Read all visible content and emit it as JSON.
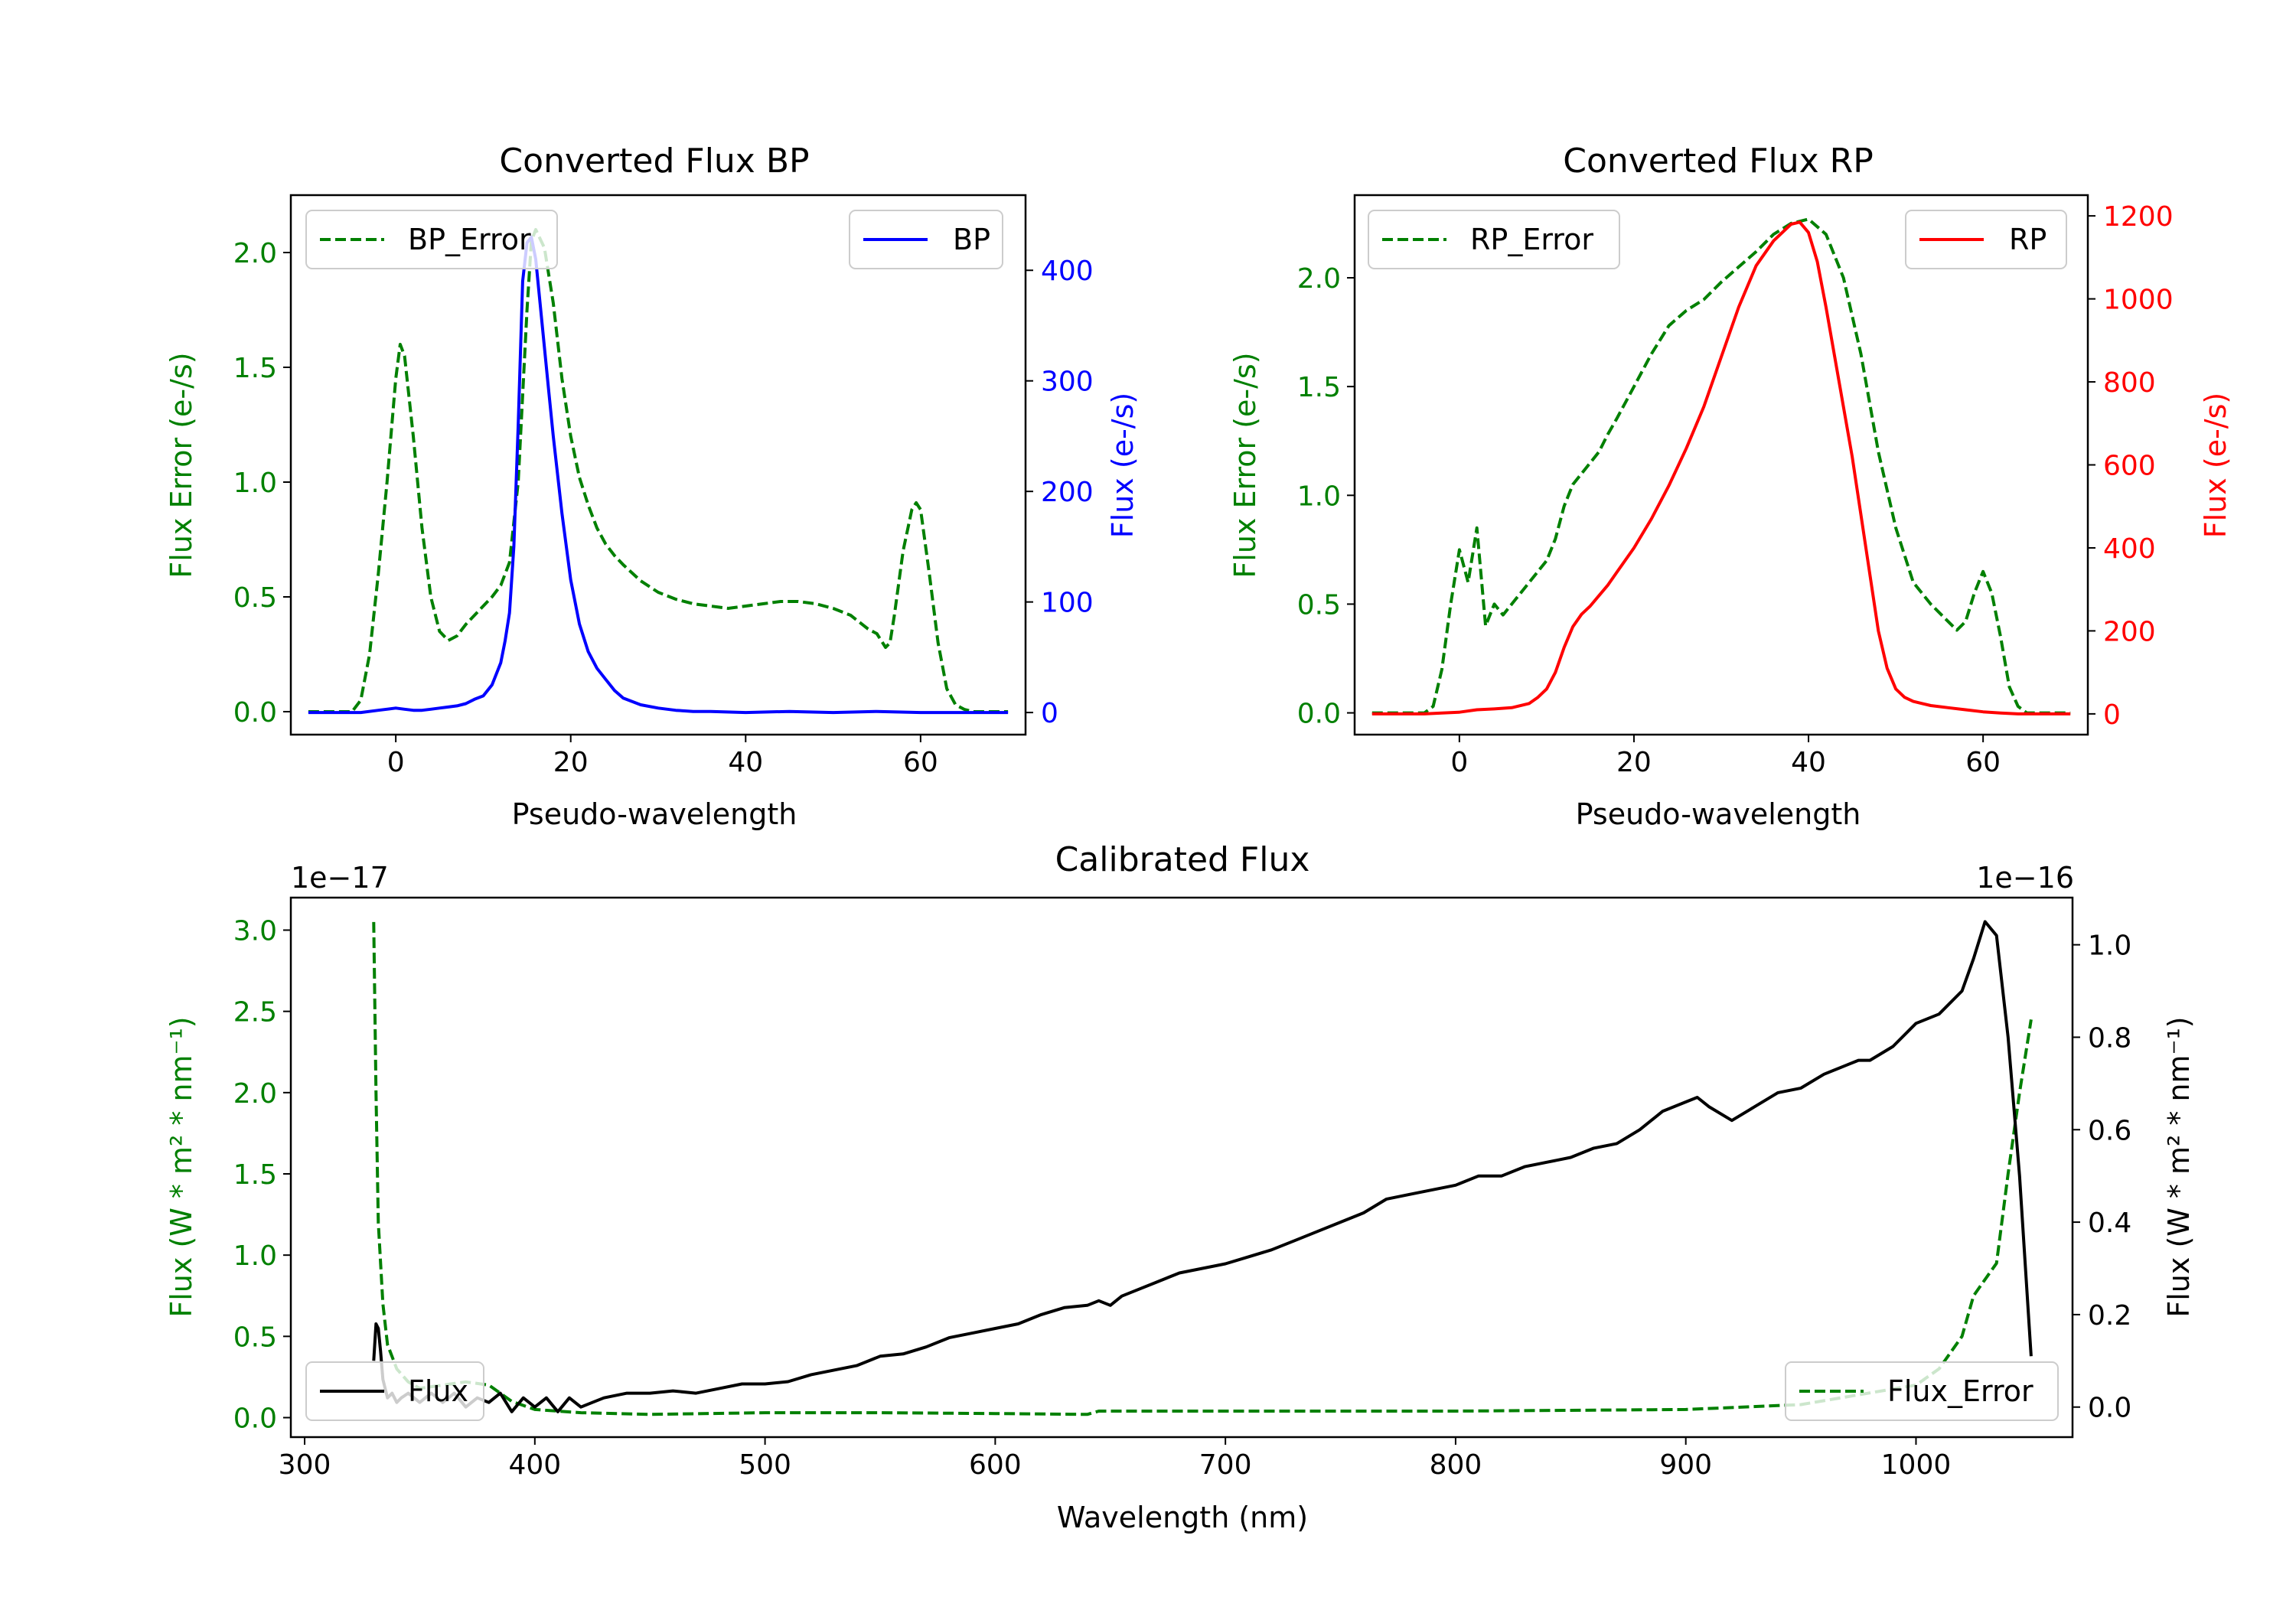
{
  "colors": {
    "green": "#008000",
    "blue": "#0000ff",
    "red": "#ff0000",
    "black": "#000000"
  },
  "chart_data": [
    {
      "type": "line",
      "title": "Converted Flux BP",
      "xlabel": "Pseudo-wavelength",
      "ylabel_left": "Flux Error (e-/s)",
      "ylabel_right": "Flux (e-/s)",
      "xlim": [
        -12,
        72
      ],
      "ylim_left": [
        -0.1,
        2.25
      ],
      "ylim_right": [
        -20,
        468
      ],
      "xticks": [
        0,
        20,
        40,
        60
      ],
      "yticks_left": [
        0.0,
        0.5,
        1.0,
        1.5,
        2.0
      ],
      "yticks_right": [
        0,
        100,
        200,
        300,
        400
      ],
      "series": [
        {
          "name": "BP_Error",
          "axis": "left",
          "style": "dashed",
          "color": "green",
          "legend": "top-left",
          "x": [
            -10,
            -5,
            -4,
            -3,
            -2,
            -1,
            0,
            0.5,
            1,
            2,
            3,
            4,
            5,
            6,
            7,
            8,
            9,
            10,
            11,
            12,
            13,
            14,
            15,
            15.5,
            16,
            17,
            18,
            19,
            20,
            21,
            22,
            23,
            24,
            25,
            26,
            28,
            30,
            32,
            34,
            36,
            38,
            40,
            42,
            44,
            46,
            48,
            50,
            52,
            54,
            55,
            56,
            56.5,
            57,
            58,
            59,
            59.5,
            60,
            61,
            62,
            63,
            64,
            65,
            66,
            68,
            70
          ],
          "y": [
            0,
            0,
            0.05,
            0.25,
            0.6,
            1.0,
            1.45,
            1.6,
            1.55,
            1.2,
            0.8,
            0.5,
            0.35,
            0.31,
            0.33,
            0.38,
            0.42,
            0.46,
            0.5,
            0.55,
            0.65,
            1.0,
            1.75,
            2.05,
            2.1,
            2.02,
            1.78,
            1.45,
            1.2,
            1.02,
            0.9,
            0.8,
            0.73,
            0.68,
            0.64,
            0.57,
            0.52,
            0.49,
            0.47,
            0.46,
            0.45,
            0.46,
            0.47,
            0.48,
            0.48,
            0.47,
            0.45,
            0.42,
            0.36,
            0.34,
            0.28,
            0.3,
            0.42,
            0.7,
            0.88,
            0.91,
            0.88,
            0.6,
            0.3,
            0.1,
            0.03,
            0.01,
            0,
            0,
            0
          ]
        },
        {
          "name": "BP",
          "axis": "right",
          "style": "solid",
          "color": "blue",
          "legend": "top-right",
          "x": [
            -10,
            -4,
            -2,
            0,
            1,
            2,
            3,
            4,
            5,
            6,
            7,
            8,
            9,
            10,
            11,
            12,
            12.5,
            13,
            13.5,
            14,
            14.5,
            15,
            15.5,
            16,
            16.5,
            17,
            17.5,
            18,
            19,
            20,
            21,
            22,
            23,
            24,
            25,
            26,
            28,
            30,
            32,
            34,
            36,
            40,
            45,
            50,
            55,
            60,
            65,
            70
          ],
          "y": [
            0,
            0,
            2,
            4,
            3,
            2,
            2,
            3,
            4,
            5,
            6,
            8,
            12,
            15,
            25,
            45,
            65,
            90,
            150,
            260,
            390,
            425,
            430,
            410,
            370,
            330,
            290,
            250,
            180,
            120,
            80,
            55,
            40,
            30,
            20,
            13,
            7,
            4,
            2,
            1,
            1,
            0,
            1,
            0,
            1,
            0,
            0,
            0
          ]
        }
      ]
    },
    {
      "type": "line",
      "title": "Converted Flux RP",
      "xlabel": "Pseudo-wavelength",
      "ylabel_left": "Flux Error (e-/s)",
      "ylabel_right": "Flux (e-/s)",
      "xlim": [
        -12,
        72
      ],
      "ylim_left": [
        -0.1,
        2.38
      ],
      "ylim_right": [
        -50,
        1250
      ],
      "xticks": [
        0,
        20,
        40,
        60
      ],
      "yticks_left": [
        0.0,
        0.5,
        1.0,
        1.5,
        2.0
      ],
      "yticks_right": [
        0,
        200,
        400,
        600,
        800,
        1000,
        1200
      ],
      "series": [
        {
          "name": "RP_Error",
          "axis": "left",
          "style": "dashed",
          "color": "green",
          "legend": "top-left",
          "x": [
            -10,
            -4,
            -3,
            -2,
            -1,
            0,
            1,
            2,
            3,
            4,
            5,
            6,
            7,
            8,
            9,
            10,
            11,
            12,
            13,
            14,
            15,
            16,
            17,
            18,
            20,
            22,
            24,
            26,
            28,
            30,
            32,
            34,
            36,
            38,
            40,
            42,
            44,
            46,
            48,
            50,
            52,
            54,
            56,
            57,
            58,
            59,
            60,
            61,
            62,
            63,
            64,
            65,
            66,
            68,
            70
          ],
          "y": [
            0,
            0,
            0.03,
            0.2,
            0.5,
            0.75,
            0.6,
            0.85,
            0.4,
            0.5,
            0.45,
            0.5,
            0.55,
            0.6,
            0.65,
            0.7,
            0.8,
            0.95,
            1.05,
            1.1,
            1.15,
            1.2,
            1.28,
            1.35,
            1.5,
            1.65,
            1.78,
            1.85,
            1.9,
            1.98,
            2.05,
            2.12,
            2.2,
            2.25,
            2.27,
            2.2,
            2.0,
            1.65,
            1.2,
            0.85,
            0.6,
            0.5,
            0.42,
            0.38,
            0.42,
            0.55,
            0.65,
            0.55,
            0.35,
            0.12,
            0.03,
            0,
            0,
            0,
            0
          ]
        },
        {
          "name": "RP",
          "axis": "right",
          "style": "solid",
          "color": "red",
          "legend": "top-right",
          "x": [
            -10,
            -4,
            -2,
            0,
            2,
            4,
            6,
            8,
            9,
            10,
            11,
            12,
            13,
            14,
            15,
            16,
            17,
            18,
            20,
            22,
            24,
            26,
            28,
            30,
            32,
            34,
            36,
            38,
            39,
            40,
            41,
            42,
            43,
            44,
            45,
            46,
            47,
            48,
            49,
            50,
            51,
            52,
            53,
            54,
            56,
            58,
            60,
            62,
            64,
            66,
            70
          ],
          "y": [
            0,
            0,
            2,
            4,
            10,
            12,
            15,
            25,
            40,
            60,
            100,
            160,
            210,
            240,
            260,
            285,
            310,
            340,
            400,
            470,
            550,
            640,
            740,
            860,
            980,
            1080,
            1140,
            1180,
            1185,
            1160,
            1090,
            980,
            860,
            740,
            620,
            480,
            340,
            200,
            110,
            60,
            40,
            30,
            25,
            20,
            15,
            10,
            5,
            2,
            0,
            0,
            0
          ]
        }
      ]
    },
    {
      "type": "line",
      "title": "Calibrated Flux",
      "xlabel": "Wavelength (nm)",
      "ylabel_left": "Flux (W * m² * nm⁻¹)",
      "ylabel_right": "Flux (W * m² * nm⁻¹)",
      "offset_left": "1e−17",
      "offset_right": "1e−16",
      "xlim": [
        294,
        1068
      ],
      "ylim_left": [
        -0.12,
        3.2
      ],
      "ylim_right": [
        -0.065,
        1.102
      ],
      "xticks": [
        300,
        400,
        500,
        600,
        700,
        800,
        900,
        1000
      ],
      "yticks_left": [
        0.0,
        0.5,
        1.0,
        1.5,
        2.0,
        2.5,
        3.0
      ],
      "yticks_right": [
        0.0,
        0.2,
        0.4,
        0.6,
        0.8,
        1.0
      ],
      "series": [
        {
          "name": "Flux_Error",
          "axis": "left",
          "style": "dashed",
          "color": "green",
          "legend": "bottom-right",
          "x": [
            330,
            331,
            332,
            334,
            336,
            340,
            345,
            350,
            360,
            370,
            380,
            390,
            400,
            420,
            450,
            500,
            550,
            600,
            640,
            645,
            700,
            800,
            900,
            950,
            1000,
            1010,
            1020,
            1025,
            1030,
            1035,
            1040,
            1045,
            1050
          ],
          "y": [
            3.05,
            2.0,
            1.2,
            0.7,
            0.45,
            0.3,
            0.22,
            0.18,
            0.2,
            0.22,
            0.2,
            0.1,
            0.05,
            0.03,
            0.02,
            0.03,
            0.03,
            0.025,
            0.02,
            0.04,
            0.04,
            0.04,
            0.05,
            0.08,
            0.2,
            0.3,
            0.5,
            0.75,
            0.85,
            0.95,
            1.5,
            2.0,
            2.45
          ]
        },
        {
          "name": "Flux",
          "axis": "right",
          "style": "solid",
          "color": "black",
          "legend": "bottom-left",
          "x": [
            330,
            331,
            332,
            333,
            334,
            336,
            338,
            340,
            342,
            345,
            350,
            355,
            360,
            365,
            370,
            375,
            380,
            385,
            390,
            395,
            400,
            405,
            410,
            415,
            420,
            425,
            430,
            440,
            450,
            460,
            470,
            480,
            490,
            500,
            510,
            520,
            530,
            540,
            550,
            560,
            570,
            580,
            590,
            600,
            610,
            620,
            630,
            640,
            645,
            650,
            655,
            660,
            670,
            680,
            690,
            700,
            710,
            720,
            730,
            740,
            750,
            760,
            770,
            780,
            790,
            800,
            810,
            820,
            830,
            840,
            850,
            860,
            870,
            880,
            890,
            900,
            905,
            910,
            920,
            930,
            940,
            950,
            960,
            970,
            975,
            980,
            990,
            1000,
            1010,
            1020,
            1025,
            1030,
            1035,
            1040,
            1045,
            1050
          ],
          "y": [
            0.1,
            0.18,
            0.17,
            0.12,
            0.06,
            0.02,
            0.03,
            0.01,
            0.02,
            0.03,
            0.01,
            0.03,
            0.01,
            0.03,
            0.0,
            0.02,
            0.01,
            0.03,
            -0.01,
            0.02,
            0.0,
            0.02,
            -0.01,
            0.02,
            0.0,
            0.01,
            0.02,
            0.03,
            0.03,
            0.035,
            0.03,
            0.04,
            0.05,
            0.05,
            0.055,
            0.07,
            0.08,
            0.09,
            0.11,
            0.115,
            0.13,
            0.15,
            0.16,
            0.17,
            0.18,
            0.2,
            0.215,
            0.22,
            0.23,
            0.22,
            0.24,
            0.25,
            0.27,
            0.29,
            0.3,
            0.31,
            0.325,
            0.34,
            0.36,
            0.38,
            0.4,
            0.42,
            0.45,
            0.46,
            0.47,
            0.48,
            0.5,
            0.5,
            0.52,
            0.53,
            0.54,
            0.56,
            0.57,
            0.6,
            0.64,
            0.66,
            0.67,
            0.65,
            0.62,
            0.65,
            0.68,
            0.69,
            0.72,
            0.74,
            0.75,
            0.75,
            0.78,
            0.83,
            0.85,
            0.9,
            0.97,
            1.05,
            1.02,
            0.8,
            0.5,
            0.11
          ]
        }
      ]
    }
  ]
}
